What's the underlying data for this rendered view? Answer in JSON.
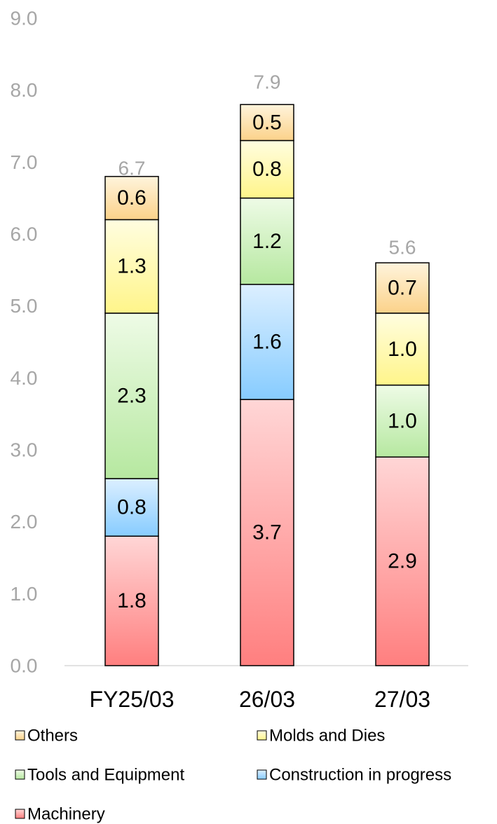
{
  "chart_data": {
    "type": "bar",
    "stacked": true,
    "categories": [
      "FY25/03",
      "26/03",
      "27/03"
    ],
    "series": [
      {
        "name": "Machinery",
        "values": [
          1.8,
          3.7,
          2.9
        ],
        "color_top": "#ffd6d6",
        "color_bottom": "#ff7f7f"
      },
      {
        "name": "Construction in progress",
        "values": [
          0.8,
          1.6,
          0
        ],
        "color_top": "#dcefff",
        "color_bottom": "#87ccff"
      },
      {
        "name": "Tools and Equipment",
        "values": [
          2.3,
          1.2,
          1.0
        ],
        "color_top": "#eefbe6",
        "color_bottom": "#b6e8a0"
      },
      {
        "name": "Molds and Dies",
        "values": [
          1.3,
          0.8,
          1.0
        ],
        "color_top": "#fffde0",
        "color_bottom": "#fff58a"
      },
      {
        "name": "Others",
        "values": [
          0.6,
          0.5,
          0.7
        ],
        "color_top": "#fff4dc",
        "color_bottom": "#fbd28a"
      }
    ],
    "segment_labels": [
      [
        "1.8",
        "0.8",
        "2.3",
        "1.3",
        "0.6"
      ],
      [
        "3.7",
        "1.6",
        "1.2",
        "0.8",
        "0.5"
      ],
      [
        "2.9",
        "",
        "1.0",
        "1.0",
        "0.7"
      ]
    ],
    "totals": [
      "6.7",
      "7.9",
      "5.6"
    ],
    "total_values": [
      6.7,
      7.9,
      5.6
    ],
    "y_ticks": [
      "0.0",
      "1.0",
      "2.0",
      "3.0",
      "4.0",
      "5.0",
      "6.0",
      "7.0",
      "8.0",
      "9.0"
    ],
    "ylim": [
      0,
      9
    ],
    "grid": false,
    "legend_position": "bottom",
    "legend_order": [
      "Others",
      "Molds and Dies",
      "Tools and Equipment",
      "Construction in progress",
      "Machinery"
    ],
    "colors": {
      "axis_line": "#d9d9d9",
      "tick_text": "#a6a6a6",
      "bar_border": "#000000"
    }
  }
}
